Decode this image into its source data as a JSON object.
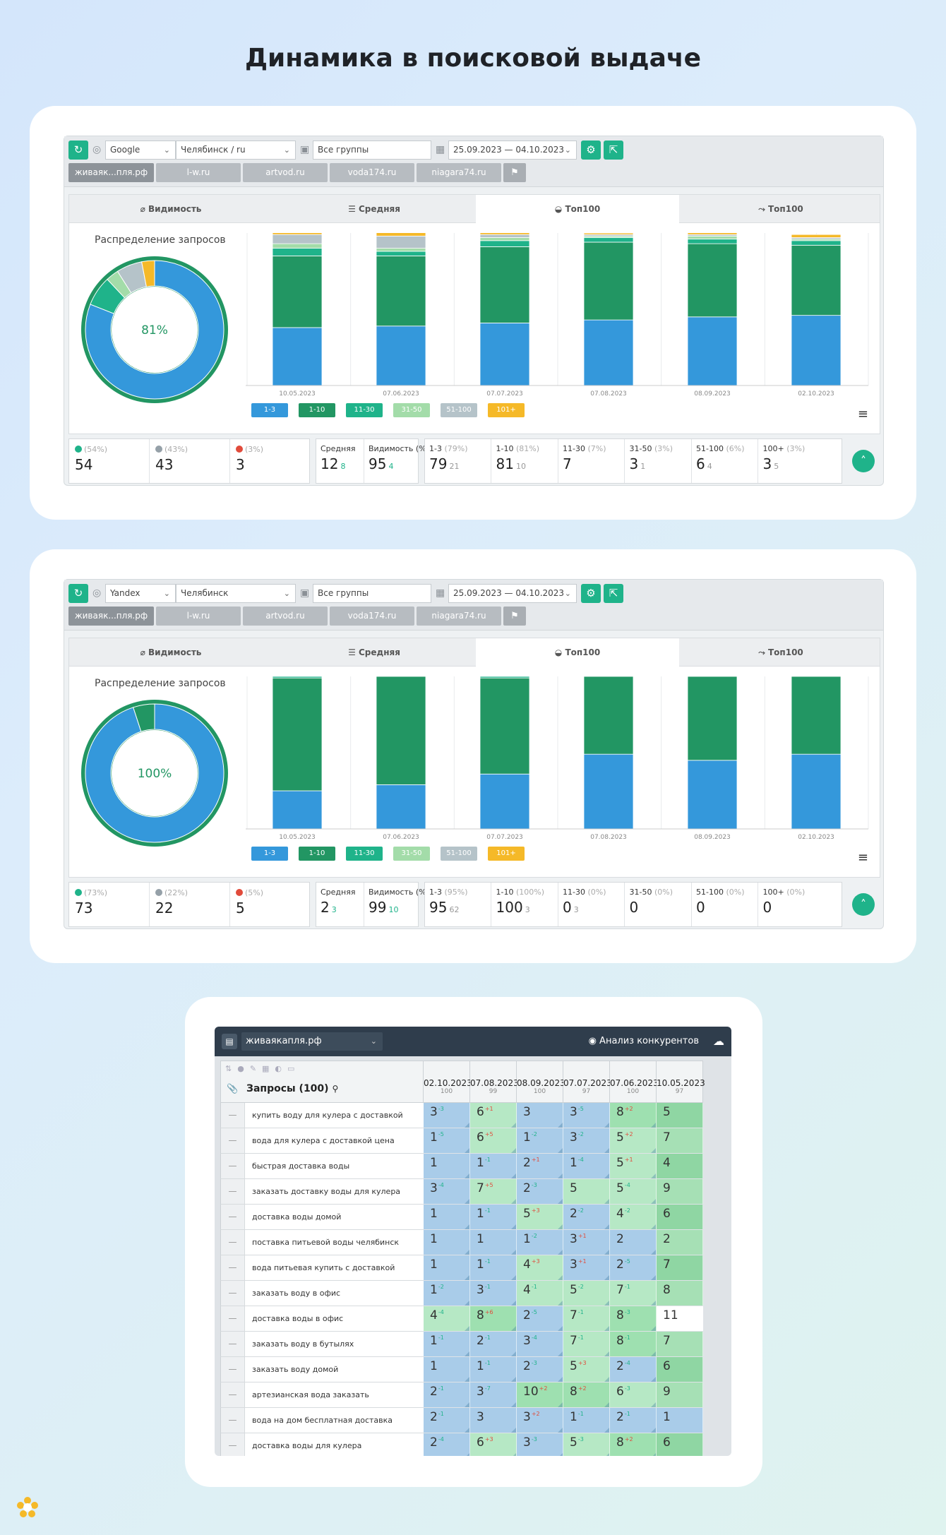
{
  "page_title": "Динамика в поисковой выдаче",
  "sites": [
    "живаяк...пля.рф",
    "l-w.ru",
    "artvod.ru",
    "voda174.ru",
    "niagara74.ru"
  ],
  "panel_tabs": [
    "Видимость",
    "Средняя",
    "Топ100",
    "Топ100"
  ],
  "dist_title": "Распределение запросов",
  "legend": [
    "1-3",
    "1-10",
    "11-30",
    "31-50",
    "51-100",
    "101+"
  ],
  "legend_colors": [
    "#3498db",
    "#229663",
    "#1fb38a",
    "#a3dca9",
    "#b5c3c9",
    "#f5b928"
  ],
  "widgets": [
    {
      "engine": "Google",
      "region": "Челябинск / ru",
      "group": "Все группы",
      "dates": "25.09.2023 — 04.10.2023",
      "donut_pct": "81%",
      "donut": [
        {
          "c": "#3498db",
          "v": 81
        },
        {
          "c": "#1fb38a",
          "v": 7
        },
        {
          "c": "#a3dca9",
          "v": 3
        },
        {
          "c": "#b5c3c9",
          "v": 6
        },
        {
          "c": "#f5b928",
          "v": 3
        }
      ],
      "chart_data": {
        "type": "bar",
        "stacked": true,
        "categories": [
          "10.05.2023",
          "07.06.2023",
          "07.07.2023",
          "07.08.2023",
          "08.09.2023",
          "02.10.2023"
        ],
        "series": [
          {
            "name": "1-3",
            "values": [
              38,
              39,
              41,
              43,
              45,
              46
            ]
          },
          {
            "name": "1-10",
            "values": [
              47,
              46,
              50,
              51,
              48,
              46
            ]
          },
          {
            "name": "11-30",
            "values": [
              5,
              3,
              4,
              3,
              3,
              3
            ]
          },
          {
            "name": "31-50",
            "values": [
              3,
              2,
              2,
              1,
              2,
              1
            ]
          },
          {
            "name": "51-100",
            "values": [
              6,
              8,
              2,
              1,
              1,
              1
            ]
          },
          {
            "name": "101+",
            "values": [
              4,
              4,
              2,
              1,
              2,
              2
            ]
          }
        ]
      },
      "stats": {
        "s1": {
          "pct": "(54%)",
          "val": "54"
        },
        "s2": {
          "pct": "(43%)",
          "val": "43"
        },
        "s3": {
          "pct": "(3%)",
          "val": "3"
        },
        "avg": {
          "label": "Средняя",
          "val": "12",
          "delta": "8"
        },
        "vis": {
          "label": "Видимость (%)",
          "val": "95",
          "delta": "4"
        },
        "r1": {
          "label": "1-3",
          "pct": "(79%)",
          "val": "79",
          "delta": "21"
        },
        "r2": {
          "label": "1-10",
          "pct": "(81%)",
          "val": "81",
          "delta": "10"
        },
        "r3": {
          "label": "11-30",
          "pct": "(7%)",
          "val": "7",
          "delta": ""
        },
        "r4": {
          "label": "31-50",
          "pct": "(3%)",
          "val": "3",
          "delta": "1"
        },
        "r5": {
          "label": "51-100",
          "pct": "(6%)",
          "val": "6",
          "delta": "4"
        },
        "r6": {
          "label": "100+",
          "pct": "(3%)",
          "val": "3",
          "delta": "5"
        }
      }
    },
    {
      "engine": "Yandex",
      "region": "Челябинск",
      "group": "Все группы",
      "dates": "25.09.2023 — 04.10.2023",
      "donut_pct": "100%",
      "donut": [
        {
          "c": "#3498db",
          "v": 95
        },
        {
          "c": "#229663",
          "v": 5
        }
      ],
      "chart_data": {
        "type": "bar",
        "stacked": true,
        "categories": [
          "10.05.2023",
          "07.06.2023",
          "07.07.2023",
          "07.08.2023",
          "08.09.2023",
          "02.10.2023"
        ],
        "series": [
          {
            "name": "1-3",
            "values": [
              25,
              29,
              36,
              49,
              45,
              49
            ]
          },
          {
            "name": "1-10",
            "values": [
              74,
              71,
              63,
              51,
              55,
              51
            ]
          },
          {
            "name": "11-30",
            "values": [
              1,
              0,
              1,
              0,
              0,
              0
            ]
          },
          {
            "name": "31-50",
            "values": [
              0,
              0,
              0,
              0,
              0,
              0
            ]
          },
          {
            "name": "51-100",
            "values": [
              0,
              0,
              0,
              0,
              0,
              0
            ]
          },
          {
            "name": "101+",
            "values": [
              0,
              0,
              0,
              0,
              0,
              0
            ]
          }
        ]
      },
      "stats": {
        "s1": {
          "pct": "(73%)",
          "val": "73"
        },
        "s2": {
          "pct": "(22%)",
          "val": "22"
        },
        "s3": {
          "pct": "(5%)",
          "val": "5"
        },
        "avg": {
          "label": "Средняя",
          "val": "2",
          "delta": "3"
        },
        "vis": {
          "label": "Видимость (%)",
          "val": "99",
          "delta": "10"
        },
        "r1": {
          "label": "1-3",
          "pct": "(95%)",
          "val": "95",
          "delta": "62"
        },
        "r2": {
          "label": "1-10",
          "pct": "(100%)",
          "val": "100",
          "delta": "3"
        },
        "r3": {
          "label": "11-30",
          "pct": "(0%)",
          "val": "0",
          "delta": "3"
        },
        "r4": {
          "label": "31-50",
          "pct": "(0%)",
          "val": "0",
          "delta": ""
        },
        "r5": {
          "label": "51-100",
          "pct": "(0%)",
          "val": "0",
          "delta": ""
        },
        "r6": {
          "label": "100+",
          "pct": "(0%)",
          "val": "0",
          "delta": ""
        }
      }
    }
  ],
  "table": {
    "site": "живаякапля.рф",
    "competitors": "Анализ конкурентов",
    "queries_title": "Запросы (100)",
    "dates": [
      {
        "d": "02.10.2023",
        "r": "100"
      },
      {
        "d": "07.08.2023",
        "r": "99"
      },
      {
        "d": "08.09.2023",
        "r": "100"
      },
      {
        "d": "07.07.2023",
        "r": "97"
      },
      {
        "d": "07.06.2023",
        "r": "100"
      },
      {
        "d": "10.05.2023",
        "r": "97"
      }
    ],
    "rows": [
      {
        "q": "купить воду для кулера с доставкой",
        "v": [
          "3",
          "6",
          "3",
          "3",
          "8",
          "5"
        ],
        "d": [
          "-3",
          "+1",
          "",
          "-5",
          "+2",
          ""
        ]
      },
      {
        "q": "вода для кулера с доставкой цена",
        "v": [
          "1",
          "6",
          "1",
          "3",
          "5",
          "7"
        ],
        "d": [
          "-5",
          "+5",
          "-2",
          "-2",
          "+2",
          ""
        ]
      },
      {
        "q": "быстрая доставка воды",
        "v": [
          "1",
          "1",
          "2",
          "1",
          "5",
          "4"
        ],
        "d": [
          "",
          "-1",
          "+1",
          "-4",
          "+1",
          ""
        ]
      },
      {
        "q": "заказать доставку воды для кулера",
        "v": [
          "3",
          "7",
          "2",
          "5",
          "5",
          "9"
        ],
        "d": [
          "-4",
          "+5",
          "-3",
          "",
          "-4",
          ""
        ]
      },
      {
        "q": "доставка воды домой",
        "v": [
          "1",
          "1",
          "5",
          "2",
          "4",
          "6"
        ],
        "d": [
          "",
          "-1",
          "+3",
          "-2",
          "-2",
          ""
        ]
      },
      {
        "q": "поставка питьевой воды челябинск",
        "v": [
          "1",
          "1",
          "1",
          "3",
          "2",
          "2"
        ],
        "d": [
          "",
          "",
          "-2",
          "+1",
          "",
          ""
        ]
      },
      {
        "q": "вода питьевая купить с доставкой",
        "v": [
          "1",
          "1",
          "4",
          "3",
          "2",
          "7"
        ],
        "d": [
          "",
          "-1",
          "+3",
          "+1",
          "-5",
          ""
        ]
      },
      {
        "q": "заказать воду в офис",
        "v": [
          "1",
          "3",
          "4",
          "5",
          "7",
          "8"
        ],
        "d": [
          "-2",
          "-1",
          "-1",
          "-2",
          "-1",
          ""
        ]
      },
      {
        "q": "доставка воды в офис",
        "v": [
          "4",
          "8",
          "2",
          "7",
          "8",
          "11"
        ],
        "d": [
          "-4",
          "+6",
          "-5",
          "-1",
          "-3",
          ""
        ]
      },
      {
        "q": "заказать воду в бутылях",
        "v": [
          "1",
          "2",
          "3",
          "7",
          "8",
          "7"
        ],
        "d": [
          "-1",
          "-1",
          "-4",
          "-1",
          "-1",
          ""
        ]
      },
      {
        "q": "заказать воду домой",
        "v": [
          "1",
          "1",
          "2",
          "5",
          "2",
          "6"
        ],
        "d": [
          "",
          "-1",
          "-3",
          "+3",
          "-4",
          ""
        ]
      },
      {
        "q": "артезианская вода заказать",
        "v": [
          "2",
          "3",
          "10",
          "8",
          "6",
          "9"
        ],
        "d": [
          "-1",
          "-7",
          "+2",
          "+2",
          "-3",
          ""
        ]
      },
      {
        "q": "вода на дом бесплатная доставка",
        "v": [
          "2",
          "3",
          "3",
          "1",
          "2",
          "1"
        ],
        "d": [
          "-1",
          "",
          "+2",
          "-1",
          "-1",
          ""
        ]
      },
      {
        "q": "доставка воды для кулера",
        "v": [
          "2",
          "6",
          "3",
          "5",
          "8",
          "6"
        ],
        "d": [
          "-4",
          "+3",
          "-3",
          "-3",
          "+2",
          ""
        ]
      }
    ]
  }
}
